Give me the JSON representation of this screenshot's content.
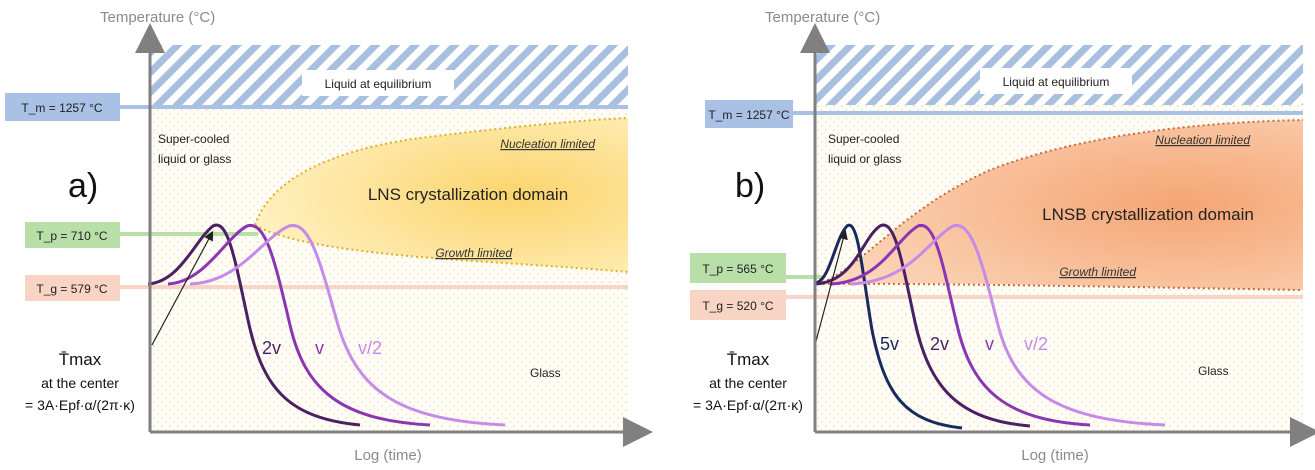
{
  "panels": [
    {
      "letter": "a)",
      "y_axis_title": "Temperature (°C)",
      "x_axis_title": "Log (time)",
      "liquid_label": "Liquid at equilibrium",
      "tm_label": "T_m = 1257 °C",
      "tp_label": "T_p = 710 °C",
      "tg_label": "T_g = 579 °C",
      "supercooled_line1": "Super-cooled",
      "supercooled_line2": "liquid or glass",
      "domain_label": "LNS crystallization domain",
      "nucleation_label": "Nucleation limited",
      "growth_label": "Growth limited",
      "glass_label": "Glass",
      "tmax_symbol": "T̄max",
      "tmax_line2": "at the center",
      "tmax_line3": "= 3A·Epf·α/(2π·κ)",
      "curves": [
        {
          "rate": "2v",
          "color": "#4a1f63"
        },
        {
          "rate": "v",
          "color": "#8a36b4"
        },
        {
          "rate": "v/2",
          "color": "#c58be6"
        }
      ]
    },
    {
      "letter": "b)",
      "y_axis_title": "Temperature (°C)",
      "x_axis_title": "Log (time)",
      "liquid_label": "Liquid at equilibrium",
      "tm_label": "T_m = 1257 °C",
      "tp_label": "T_p = 565 °C",
      "tg_label": "T_g = 520 °C",
      "supercooled_line1": "Super-cooled",
      "supercooled_line2": "liquid or glass",
      "domain_label": "LNSB crystallization domain",
      "nucleation_label": "Nucleation limited",
      "growth_label": "Growth limited",
      "glass_label": "Glass",
      "tmax_symbol": "T̄max",
      "tmax_line2": "at the center",
      "tmax_line3": "= 3A·Epf·α/(2π·κ)",
      "curves": [
        {
          "rate": "5v",
          "color": "#1a2a5e"
        },
        {
          "rate": "2v",
          "color": "#4a1f63"
        },
        {
          "rate": "v",
          "color": "#8a36b4"
        },
        {
          "rate": "v/2",
          "color": "#c58be6"
        }
      ]
    }
  ],
  "colors": {
    "tm_box": "#a9c1e4",
    "tp_box": "#b9dfa8",
    "tg_box": "#f8d4c4",
    "hatch": "#9fb7dc",
    "domain_a": "#fbd36a",
    "domain_b": "#f4a878",
    "axis": "#808080"
  }
}
